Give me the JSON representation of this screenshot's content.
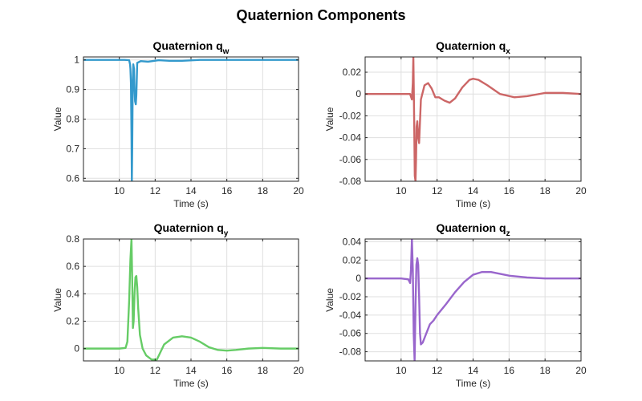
{
  "figure_title": "Quaternion Components",
  "chart_data": [
    {
      "type": "line",
      "title": "Quaternion q",
      "title_subscript": "w",
      "xlabel": "Time (s)",
      "ylabel": "Value",
      "xlim": [
        8,
        20
      ],
      "ylim": [
        0.59,
        1.01
      ],
      "xticks": [
        10,
        12,
        14,
        16,
        18,
        20
      ],
      "xtick_labels": [
        "10",
        "12",
        "14",
        "16",
        "18",
        "20"
      ],
      "yticks": [
        0.6,
        0.7,
        0.8,
        0.9,
        1.0
      ],
      "ytick_labels": [
        "0.6",
        "0.7",
        "0.8",
        "0.9",
        "1"
      ],
      "grid": true,
      "color": "#3399cc",
      "x": [
        8,
        10.3,
        10.55,
        10.6,
        10.62,
        10.65,
        10.68,
        10.7,
        10.72,
        10.75,
        10.78,
        10.82,
        10.85,
        10.88,
        10.92,
        10.95,
        11.0,
        11.2,
        11.6,
        12.2,
        12.8,
        13.5,
        14.5,
        16,
        18,
        20
      ],
      "y": [
        1.0,
        1.0,
        0.999,
        0.985,
        0.97,
        0.92,
        0.75,
        0.59,
        0.7,
        0.93,
        0.985,
        0.97,
        0.9,
        0.86,
        0.85,
        0.88,
        0.99,
        0.996,
        0.994,
        0.999,
        0.997,
        0.997,
        1.0,
        1.0,
        1.0,
        1.0
      ]
    },
    {
      "type": "line",
      "title": "Quaternion q",
      "title_subscript": "x",
      "xlabel": "Time (s)",
      "ylabel": "",
      "xlim": [
        8,
        20
      ],
      "ylim": [
        -0.08,
        0.034
      ],
      "xticks": [
        10,
        12,
        14,
        16,
        18,
        20
      ],
      "xtick_labels": [
        "10",
        "12",
        "14",
        "16",
        "18",
        "20"
      ],
      "yticks": [
        -0.08,
        -0.06,
        -0.04,
        -0.02,
        0,
        0.02
      ],
      "ytick_labels": [
        "-0.08",
        "-0.06",
        "-0.04",
        "-0.02",
        "0",
        "0.02"
      ],
      "grid": true,
      "color": "#cc6666",
      "x": [
        8,
        10.0,
        10.5,
        10.6,
        10.65,
        10.68,
        10.7,
        10.73,
        10.76,
        10.8,
        10.83,
        10.86,
        10.9,
        10.95,
        11.0,
        11.1,
        11.3,
        11.5,
        11.7,
        11.9,
        12.1,
        12.4,
        12.7,
        13.0,
        13.4,
        13.8,
        14.0,
        14.3,
        14.8,
        15.5,
        16.3,
        17.0,
        18.0,
        19.0,
        20.0
      ],
      "y": [
        0.0,
        0.0,
        0.0,
        -0.005,
        0.01,
        0.034,
        0.01,
        -0.03,
        -0.075,
        -0.08,
        -0.06,
        -0.03,
        -0.025,
        -0.04,
        -0.045,
        -0.005,
        0.008,
        0.01,
        0.005,
        -0.003,
        -0.003,
        -0.006,
        -0.008,
        -0.004,
        0.006,
        0.013,
        0.014,
        0.013,
        0.008,
        0.0,
        -0.003,
        -0.002,
        0.001,
        0.001,
        0.0
      ]
    },
    {
      "type": "line",
      "title": "Quaternion q",
      "title_subscript": "y",
      "xlabel": "Time (s)",
      "ylabel": "Value",
      "xlim": [
        8,
        20
      ],
      "ylim": [
        -0.09,
        0.8
      ],
      "xticks": [
        10,
        12,
        14,
        16,
        18,
        20
      ],
      "xtick_labels": [
        "10",
        "12",
        "14",
        "16",
        "18",
        "20"
      ],
      "yticks": [
        0,
        0.2,
        0.4,
        0.6,
        0.8
      ],
      "ytick_labels": [
        "0",
        "0.2",
        "0.4",
        "0.6",
        "0.8"
      ],
      "grid": true,
      "color": "#66cc66",
      "x": [
        8,
        10.0,
        10.35,
        10.45,
        10.55,
        10.62,
        10.68,
        10.72,
        10.76,
        10.8,
        10.85,
        10.9,
        10.95,
        11.0,
        11.05,
        11.15,
        11.3,
        11.5,
        11.8,
        12.1,
        12.5,
        13.0,
        13.5,
        14.0,
        14.5,
        15.0,
        15.5,
        16.0,
        16.5,
        17.2,
        18.0,
        19.0,
        20.0
      ],
      "y": [
        0.0,
        0.0,
        0.005,
        0.05,
        0.35,
        0.65,
        0.8,
        0.5,
        0.15,
        0.2,
        0.4,
        0.52,
        0.53,
        0.45,
        0.3,
        0.1,
        0.0,
        -0.05,
        -0.08,
        -0.08,
        0.03,
        0.08,
        0.09,
        0.08,
        0.05,
        0.01,
        -0.01,
        -0.015,
        -0.01,
        0.0,
        0.005,
        0.0,
        0.0
      ]
    },
    {
      "type": "line",
      "title": "Quaternion q",
      "title_subscript": "z",
      "xlabel": "Time (s)",
      "ylabel": "Value",
      "xlim": [
        8,
        20
      ],
      "ylim": [
        -0.09,
        0.043
      ],
      "xticks": [
        10,
        12,
        14,
        16,
        18,
        20
      ],
      "xtick_labels": [
        "10",
        "12",
        "14",
        "16",
        "18",
        "20"
      ],
      "yticks": [
        -0.08,
        -0.06,
        -0.04,
        -0.02,
        0,
        0.02,
        0.04
      ],
      "ytick_labels": [
        "-0.08",
        "-0.06",
        "-0.04",
        "-0.02",
        "0",
        "0.02",
        "0.04"
      ],
      "grid": true,
      "color": "#9966cc",
      "x": [
        8,
        10.0,
        10.4,
        10.5,
        10.55,
        10.6,
        10.65,
        10.7,
        10.75,
        10.8,
        10.85,
        10.9,
        10.95,
        11.0,
        11.05,
        11.1,
        11.2,
        11.4,
        11.6,
        11.8,
        12.0,
        12.5,
        13.0,
        13.5,
        14.0,
        14.5,
        15.0,
        15.5,
        16.0,
        17.0,
        18.0,
        19.0,
        20.0
      ],
      "y": [
        0.0,
        0.0,
        -0.001,
        -0.005,
        0.01,
        0.043,
        0.01,
        -0.06,
        -0.09,
        -0.03,
        0.015,
        0.022,
        0.015,
        -0.02,
        -0.06,
        -0.072,
        -0.07,
        -0.06,
        -0.05,
        -0.046,
        -0.04,
        -0.028,
        -0.015,
        -0.004,
        0.004,
        0.007,
        0.007,
        0.005,
        0.003,
        0.001,
        0.0,
        0.0,
        0.0
      ]
    }
  ]
}
